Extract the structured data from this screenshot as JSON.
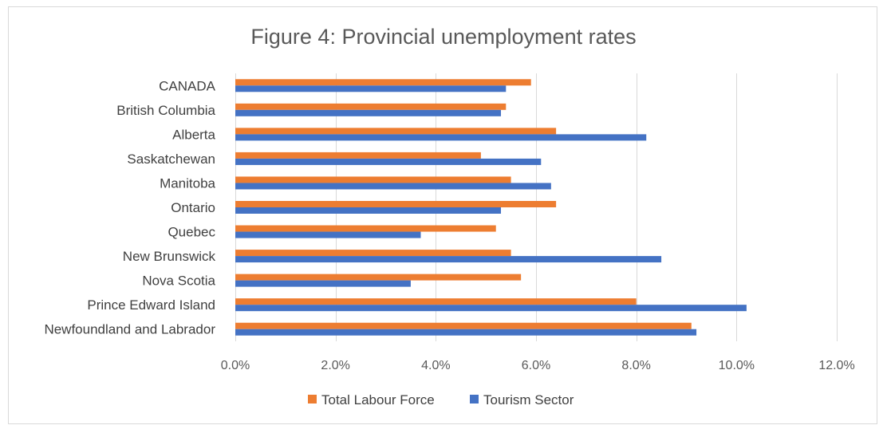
{
  "chart_data": {
    "type": "bar",
    "orientation": "horizontal",
    "title": "Figure 4: Provincial unemployment rates",
    "categories": [
      "CANADA",
      "British Columbia",
      "Alberta",
      "Saskatchewan",
      "Manitoba",
      "Ontario",
      "Quebec",
      "New Brunswick",
      "Nova Scotia",
      "Prince Edward Island",
      "Newfoundland and Labrador"
    ],
    "series": [
      {
        "name": "Total Labour Force",
        "color": "#ED7D31",
        "values": [
          5.9,
          5.4,
          6.4,
          4.9,
          5.5,
          6.4,
          5.2,
          5.5,
          5.7,
          8.0,
          9.1
        ]
      },
      {
        "name": "Tourism Sector",
        "color": "#4472C4",
        "values": [
          5.4,
          5.3,
          8.2,
          6.1,
          6.3,
          5.3,
          3.7,
          8.5,
          3.5,
          10.2,
          9.2
        ]
      }
    ],
    "xlim": [
      0,
      12
    ],
    "x_ticks": [
      "0.0%",
      "2.0%",
      "4.0%",
      "6.0%",
      "8.0%",
      "10.0%",
      "12.0%"
    ],
    "x_tick_values": [
      0,
      2,
      4,
      6,
      8,
      10,
      12
    ],
    "grid": true,
    "gridline_color": "#d9d9d9",
    "legend_position": "bottom"
  }
}
